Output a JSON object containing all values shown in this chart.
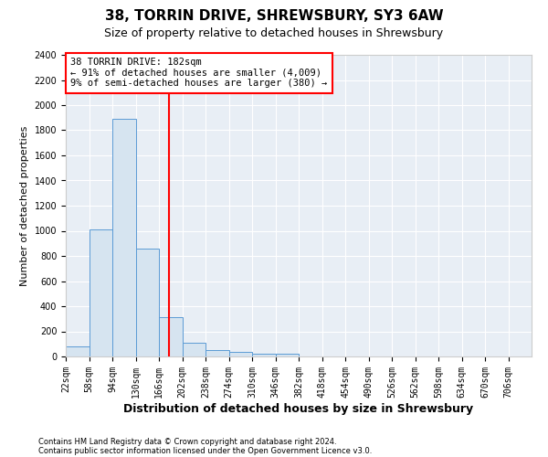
{
  "title1": "38, TORRIN DRIVE, SHREWSBURY, SY3 6AW",
  "title2": "Size of property relative to detached houses in Shrewsbury",
  "xlabel": "Distribution of detached houses by size in Shrewsbury",
  "ylabel": "Number of detached properties",
  "footer1": "Contains HM Land Registry data © Crown copyright and database right 2024.",
  "footer2": "Contains public sector information licensed under the Open Government Licence v3.0.",
  "property_size": 182,
  "bin_edges": [
    22,
    58,
    94,
    130,
    166,
    202,
    238,
    274,
    310,
    346,
    382,
    418,
    454,
    490,
    526,
    562,
    598,
    634,
    670,
    706,
    742
  ],
  "bar_heights": [
    80,
    1010,
    1890,
    860,
    310,
    110,
    50,
    40,
    25,
    20,
    0,
    0,
    0,
    0,
    0,
    0,
    0,
    0,
    0,
    0
  ],
  "bar_color": "#d6e4f0",
  "bar_edge_color": "#5b9bd5",
  "vline_color": "red",
  "vline_x": 182,
  "annotation_text": "38 TORRIN DRIVE: 182sqm\n← 91% of detached houses are smaller (4,009)\n9% of semi-detached houses are larger (380) →",
  "annotation_box_color": "white",
  "annotation_box_edge_color": "red",
  "ylim": [
    0,
    2400
  ],
  "yticks": [
    0,
    200,
    400,
    600,
    800,
    1000,
    1200,
    1400,
    1600,
    1800,
    2000,
    2200,
    2400
  ],
  "background_color": "#ffffff",
  "axes_background": "#e8eef5",
  "grid_color": "#ffffff",
  "title1_fontsize": 11,
  "title2_fontsize": 9,
  "xlabel_fontsize": 9,
  "ylabel_fontsize": 8,
  "tick_fontsize": 7,
  "footer_fontsize": 6
}
